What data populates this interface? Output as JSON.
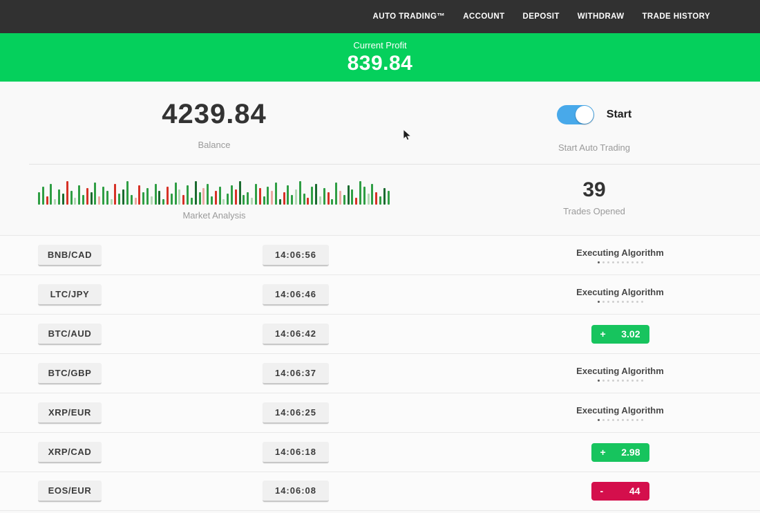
{
  "nav": {
    "items": [
      "AUTO TRADING™",
      "ACCOUNT",
      "DEPOSIT",
      "WITHDRAW",
      "TRADE HISTORY"
    ]
  },
  "banner": {
    "label": "Current Profit",
    "value": "839.84"
  },
  "account": {
    "balance": "4239.84",
    "balance_label": "Balance",
    "toggle_label": "Start",
    "toggle_caption": "Start Auto Trading",
    "toggle_state": "on"
  },
  "market": {
    "label": "Market Analysis",
    "trades_opened": "39",
    "trades_opened_label": "Trades Opened",
    "bar_colors": {
      "g": "#2f9e44",
      "dg": "#1a6b2f",
      "lg": "#b2d8b4",
      "r": "#d63126",
      "lr": "#eaa8a1"
    },
    "bars": [
      "18|g",
      "26|g",
      "12|r",
      "30|g",
      "8|lg",
      "22|g",
      "16|dg",
      "34|r",
      "20|g",
      "10|lg",
      "28|g",
      "14|g",
      "24|r",
      "18|dg",
      "32|g",
      "12|lr",
      "26|g",
      "20|g",
      "8|lg",
      "30|r",
      "16|g",
      "22|dg",
      "34|g",
      "14|g",
      "10|lr",
      "28|r",
      "18|g",
      "24|g",
      "12|lg",
      "30|g",
      "20|dg",
      "8|g",
      "26|r",
      "16|g",
      "32|g",
      "22|lg",
      "14|r",
      "28|g",
      "10|g",
      "34|dg",
      "18|g",
      "24|lr",
      "30|g",
      "12|g",
      "20|r",
      "26|g",
      "8|lg",
      "16|g",
      "28|g",
      "22|r",
      "34|dg",
      "14|g",
      "18|g",
      "10|lg",
      "30|g",
      "24|r",
      "12|g",
      "26|g",
      "20|lr",
      "32|g",
      "8|dg",
      "18|r",
      "28|g",
      "14|g",
      "22|lg",
      "34|g",
      "16|g",
      "10|r",
      "26|g",
      "30|dg",
      "12|lg",
      "24|g",
      "18|r",
      "8|g",
      "32|g",
      "20|lr",
      "14|g",
      "28|dg",
      "22|g",
      "10|r",
      "34|g",
      "26|g",
      "16|lg",
      "30|g",
      "18|r",
      "12|g",
      "24|dg",
      "20|g"
    ]
  },
  "trades": {
    "executing_label": "Executing Algorithm",
    "progress_dots_total": 10,
    "progress_dots_filled": 1,
    "rows": [
      {
        "pair": "BNB/CAD",
        "time": "14:06:56",
        "status": "executing",
        "sign": "",
        "amount": ""
      },
      {
        "pair": "LTC/JPY",
        "time": "14:06:46",
        "status": "executing",
        "sign": "",
        "amount": ""
      },
      {
        "pair": "BTC/AUD",
        "time": "14:06:42",
        "status": "profit",
        "sign": "+",
        "amount": "3.02"
      },
      {
        "pair": "BTC/GBP",
        "time": "14:06:37",
        "status": "executing",
        "sign": "",
        "amount": ""
      },
      {
        "pair": "XRP/EUR",
        "time": "14:06:25",
        "status": "executing",
        "sign": "",
        "amount": ""
      },
      {
        "pair": "XRP/CAD",
        "time": "14:06:18",
        "status": "profit",
        "sign": "+",
        "amount": "2.98"
      },
      {
        "pair": "EOS/EUR",
        "time": "14:06:08",
        "status": "loss",
        "sign": "-",
        "amount": "44"
      }
    ]
  },
  "colors": {
    "nav_bg": "#313131",
    "banner_green": "#05d05c",
    "profit_green": "#17c45e",
    "loss_red": "#d40f4c",
    "toggle_blue": "#48a9ea",
    "page_bg": "#f9f9f9"
  }
}
